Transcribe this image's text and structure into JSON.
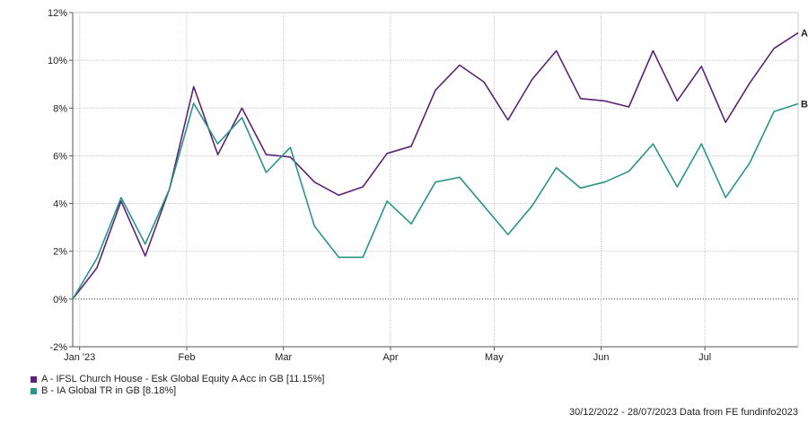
{
  "chart_data": {
    "type": "line",
    "y_axis": {
      "ticks": [
        "-2%",
        "0%",
        "2%",
        "4%",
        "6%",
        "8%",
        "10%",
        "12%"
      ],
      "tick_values": [
        -2,
        0,
        2,
        4,
        6,
        8,
        10,
        12
      ],
      "ylim": [
        -2,
        12
      ]
    },
    "x_axis": {
      "tick_labels": [
        "Jan '23",
        "Feb",
        "Mar",
        "Apr",
        "May",
        "Jun",
        "Jul"
      ],
      "tick_dates": [
        "2023-01-01",
        "2023-02-01",
        "2023-03-01",
        "2023-04-01",
        "2023-05-01",
        "2023-06-01",
        "2023-07-01"
      ],
      "range": [
        "2022-12-30",
        "2023-07-28"
      ]
    },
    "grid": true,
    "zero_line": "dotted",
    "x": [
      "2022-12-30",
      "2023-01-06",
      "2023-01-13",
      "2023-01-20",
      "2023-01-27",
      "2023-02-03",
      "2023-02-10",
      "2023-02-17",
      "2023-02-24",
      "2023-03-03",
      "2023-03-10",
      "2023-03-17",
      "2023-03-24",
      "2023-03-31",
      "2023-04-07",
      "2023-04-14",
      "2023-04-21",
      "2023-04-28",
      "2023-05-05",
      "2023-05-12",
      "2023-05-19",
      "2023-05-26",
      "2023-06-02",
      "2023-06-09",
      "2023-06-16",
      "2023-06-23",
      "2023-06-30",
      "2023-07-07",
      "2023-07-14",
      "2023-07-21",
      "2023-07-28"
    ],
    "series": [
      {
        "name": "A - IFSL Church House - Esk Global Equity A Acc in GB [11.15%]",
        "end_marker": "A",
        "color": "#5b2377",
        "values": [
          0.0,
          1.3,
          4.1,
          1.8,
          4.6,
          8.9,
          6.05,
          8.0,
          6.05,
          5.95,
          4.9,
          4.35,
          4.7,
          6.1,
          6.4,
          8.75,
          9.8,
          9.1,
          7.5,
          9.2,
          10.4,
          8.4,
          8.3,
          8.05,
          10.4,
          8.3,
          9.75,
          7.4,
          9.05,
          10.5,
          11.15
        ]
      },
      {
        "name": "B - IA Global TR in GB [8.18%]",
        "end_marker": "B",
        "color": "#2a9486",
        "values": [
          0.0,
          1.7,
          4.25,
          2.3,
          4.6,
          8.2,
          6.5,
          7.6,
          5.3,
          6.35,
          3.05,
          1.75,
          1.75,
          4.1,
          3.15,
          4.9,
          5.1,
          3.9,
          2.7,
          3.9,
          5.5,
          4.65,
          4.9,
          5.35,
          6.5,
          4.7,
          6.5,
          4.25,
          5.7,
          7.85,
          8.18
        ]
      }
    ]
  },
  "legend": {
    "items": [
      {
        "label": "A - IFSL Church House - Esk Global Equity A Acc in GB [11.15%]",
        "color": "#5b2377"
      },
      {
        "label": "B - IA Global TR in GB [8.18%]",
        "color": "#2a9486"
      }
    ]
  },
  "footer": {
    "text": "30/12/2022 - 28/07/2023 Data from FE fundinfo2023"
  }
}
